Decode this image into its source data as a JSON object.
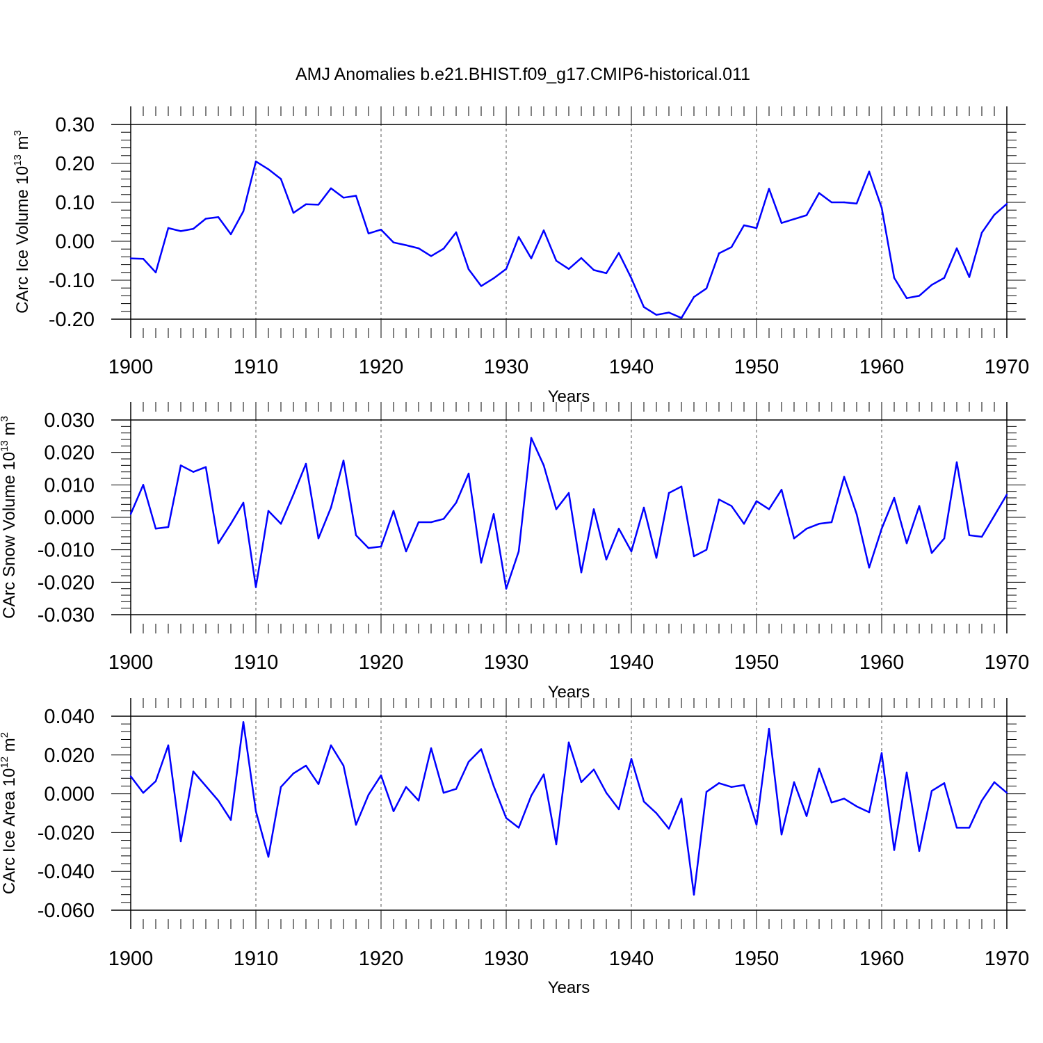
{
  "title": "AMJ Anomalies b.e21.BHIST.f09_g17.CMIP6-historical.011",
  "colors": {
    "series": "#0000ff",
    "axis": "#000000",
    "grid": "#555555"
  },
  "chart_data": [
    {
      "type": "line",
      "xlabel": "Years",
      "ylabel": "CArc Ice Volume 10",
      "ylabel_exponent": "13",
      "ylabel_unit": " m",
      "ylabel_unit_exponent": "3",
      "xlim": [
        1900,
        1970
      ],
      "ylim": [
        -0.2,
        0.3
      ],
      "x_ticks": [
        "1900",
        "1910",
        "1920",
        "1930",
        "1940",
        "1950",
        "1960",
        "1970"
      ],
      "y_tick_values": [
        -0.2,
        -0.1,
        0.0,
        0.1,
        0.2,
        0.3
      ],
      "y_tick_labels": [
        "-0.20",
        "-0.10",
        "0.00",
        "0.10",
        "0.20",
        "0.30"
      ],
      "x_grid": "dashed at major x ticks",
      "x_start": 1900,
      "values": [
        -0.044,
        -0.045,
        -0.08,
        0.034,
        0.026,
        0.032,
        0.058,
        0.062,
        0.018,
        0.077,
        0.205,
        0.185,
        0.16,
        0.073,
        0.095,
        0.094,
        0.136,
        0.112,
        0.117,
        0.02,
        0.03,
        -0.003,
        -0.01,
        -0.018,
        -0.038,
        -0.019,
        0.023,
        -0.072,
        -0.115,
        -0.095,
        -0.071,
        0.011,
        -0.044,
        0.028,
        -0.05,
        -0.071,
        -0.043,
        -0.074,
        -0.082,
        -0.03,
        -0.095,
        -0.169,
        -0.189,
        -0.183,
        -0.197,
        -0.143,
        -0.121,
        -0.031,
        -0.015,
        0.041,
        0.034,
        0.135,
        0.047,
        0.057,
        0.067,
        0.124,
        0.1,
        0.1,
        0.097,
        0.179,
        0.086,
        -0.094,
        -0.146,
        -0.14,
        -0.112,
        -0.094,
        -0.018,
        -0.092,
        0.022,
        0.068,
        0.096
      ]
    },
    {
      "type": "line",
      "xlabel": "Years",
      "ylabel": "CArc Snow Volume 10",
      "ylabel_exponent": "13",
      "ylabel_unit": " m",
      "ylabel_unit_exponent": "3",
      "xlim": [
        1900,
        1970
      ],
      "ylim": [
        -0.03,
        0.03
      ],
      "x_ticks": [
        "1900",
        "1910",
        "1920",
        "1930",
        "1940",
        "1950",
        "1960",
        "1970"
      ],
      "y_tick_values": [
        -0.03,
        -0.02,
        -0.01,
        0.0,
        0.01,
        0.02,
        0.03
      ],
      "y_tick_labels": [
        "-0.030",
        "-0.020",
        "-0.010",
        "0.000",
        "0.010",
        "0.020",
        "0.030"
      ],
      "x_grid": "dashed at major x ticks",
      "x_start": 1900,
      "values": [
        0.001,
        0.01,
        -0.0035,
        -0.003,
        0.016,
        0.014,
        0.0155,
        -0.008,
        -0.002,
        0.0045,
        -0.0215,
        0.002,
        -0.002,
        0.007,
        0.0165,
        -0.0065,
        0.003,
        0.0175,
        -0.0055,
        -0.0095,
        -0.009,
        0.002,
        -0.0105,
        -0.0015,
        -0.0015,
        -0.0005,
        0.0045,
        0.0135,
        -0.014,
        0.001,
        -0.022,
        -0.0105,
        0.0245,
        0.016,
        0.0025,
        0.0075,
        -0.017,
        0.0025,
        -0.013,
        -0.0035,
        -0.0105,
        0.003,
        -0.0125,
        0.0075,
        0.0095,
        -0.012,
        -0.01,
        0.0055,
        0.0035,
        -0.002,
        0.005,
        0.0025,
        0.0085,
        -0.0065,
        -0.0035,
        -0.002,
        -0.0015,
        0.0125,
        0.001,
        -0.0155,
        -0.0035,
        0.006,
        -0.008,
        0.0035,
        -0.011,
        -0.0065,
        0.017,
        -0.0055,
        -0.006,
        0.0005,
        0.007
      ]
    },
    {
      "type": "line",
      "xlabel": "Years",
      "ylabel": "CArc Ice Area 10",
      "ylabel_exponent": "12",
      "ylabel_unit": " m",
      "ylabel_unit_exponent": "2",
      "xlim": [
        1900,
        1970
      ],
      "ylim": [
        -0.06,
        0.04
      ],
      "x_ticks": [
        "1900",
        "1910",
        "1920",
        "1930",
        "1940",
        "1950",
        "1960",
        "1970"
      ],
      "y_tick_values": [
        -0.06,
        -0.04,
        -0.02,
        0.0,
        0.02,
        0.04
      ],
      "y_tick_labels": [
        "-0.060",
        "-0.040",
        "-0.020",
        "0.000",
        "0.020",
        "0.040"
      ],
      "x_grid": "dashed at major x ticks",
      "x_start": 1900,
      "values": [
        0.009,
        0.0005,
        0.0065,
        0.025,
        -0.0245,
        0.0115,
        0.004,
        -0.0035,
        -0.0135,
        0.037,
        -0.009,
        -0.0325,
        0.0035,
        0.0105,
        0.0145,
        0.005,
        0.025,
        0.0145,
        -0.016,
        -0.0005,
        0.0095,
        -0.009,
        0.0035,
        -0.0035,
        0.0235,
        0.0005,
        0.0025,
        0.0165,
        0.023,
        0.004,
        -0.0125,
        -0.0175,
        -0.001,
        0.01,
        -0.026,
        0.0265,
        0.006,
        0.0125,
        0.0005,
        -0.008,
        0.018,
        -0.004,
        -0.01,
        -0.018,
        -0.0025,
        -0.052,
        0.001,
        0.0055,
        0.0035,
        0.0045,
        -0.016,
        0.0335,
        -0.021,
        0.006,
        -0.0115,
        0.013,
        -0.0045,
        -0.0025,
        -0.0065,
        -0.0095,
        0.021,
        -0.029,
        0.011,
        -0.0295,
        0.0015,
        0.0055,
        -0.0175,
        -0.0175,
        -0.0035,
        0.006,
        0.0005
      ]
    }
  ]
}
